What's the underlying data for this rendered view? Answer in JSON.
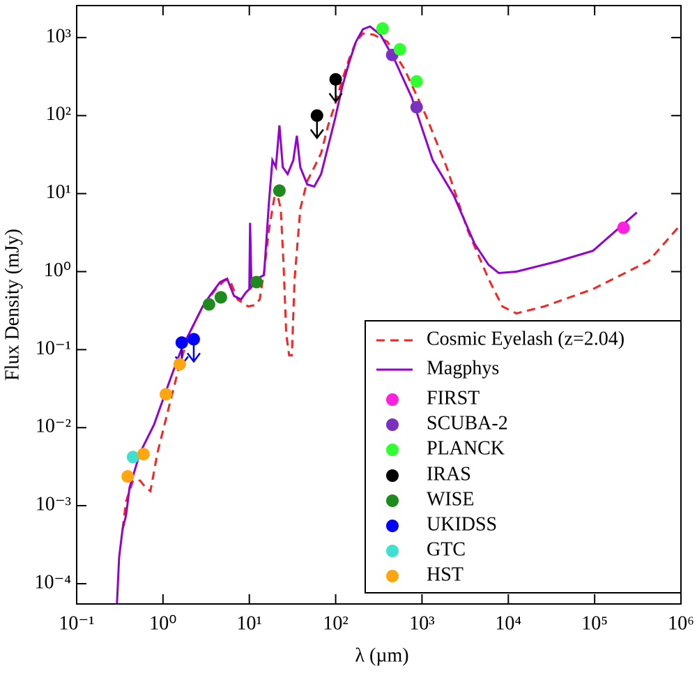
{
  "chart_data": {
    "type": "line",
    "xlabel": "λ (µm)",
    "ylabel": "Flux Density (mJy)",
    "xscale": "log",
    "yscale": "log",
    "legend": "lower right",
    "xlim": [
      0.1,
      1000000
    ],
    "ylim": [
      5.5e-05,
      2570
    ],
    "xticks": [
      {
        "value": 0.1,
        "label": "10⁻¹"
      },
      {
        "value": 1,
        "label": "10⁰"
      },
      {
        "value": 10,
        "label": "10¹"
      },
      {
        "value": 100,
        "label": "10²"
      },
      {
        "value": 1000,
        "label": "10³"
      },
      {
        "value": 10000,
        "label": "10⁴"
      },
      {
        "value": 100000,
        "label": "10⁵"
      },
      {
        "value": 1000000,
        "label": "10⁶"
      }
    ],
    "yticks": [
      {
        "value": 0.0001,
        "label": "10⁻⁴"
      },
      {
        "value": 0.001,
        "label": "10⁻³"
      },
      {
        "value": 0.01,
        "label": "10⁻²"
      },
      {
        "value": 0.1,
        "label": "10⁻¹"
      },
      {
        "value": 1,
        "label": "10⁰"
      },
      {
        "value": 10,
        "label": "10¹"
      },
      {
        "value": 100,
        "label": "10²"
      },
      {
        "value": 1000,
        "label": "10³"
      }
    ],
    "series": [
      {
        "name": "Cosmic Eyelash (z=2.04)",
        "color": "#ff2020",
        "style": "dashed",
        "x": [
          0.34,
          0.373,
          0.449,
          0.542,
          0.628,
          0.715,
          0.862,
          1.14,
          1.51,
          1.99,
          2.88,
          4.09,
          5.23,
          6.07,
          7.31,
          9.66,
          11.6,
          13.2,
          14.8,
          16.9,
          20.3,
          23.1,
          24.9,
          26.8,
          28.9,
          31.1,
          33.5,
          38.9,
          46.9,
          56.5,
          67.9,
          81.8,
          98.6,
          119,
          143,
          172,
          207,
          274,
          397,
          631,
          1100,
          1930,
          3370,
          5880,
          8530,
          12400,
          26000,
          95500,
          422000,
          1000000
        ],
        "values": [
          0.000497,
          0.00113,
          0.0021,
          0.0021,
          0.00171,
          0.00154,
          0.00477,
          0.0164,
          0.0562,
          0.157,
          0.358,
          0.598,
          0.781,
          0.735,
          0.44,
          0.358,
          0.373,
          0.44,
          1.0,
          3.43,
          11.8,
          6.36,
          1.23,
          0.157,
          0.0848,
          0.0848,
          0.814,
          6.36,
          14.5,
          21.8,
          33.0,
          75.0,
          139,
          285,
          529,
          884,
          1130,
          1090,
          884,
          388,
          102,
          21.8,
          3.43,
          0.814,
          0.358,
          0.291,
          0.358,
          0.598,
          1.36,
          4.05
        ]
      },
      {
        "name": "Magphys",
        "color": "#9400d3",
        "style": "solid",
        "x": [
          0.293,
          0.31,
          0.34,
          0.373,
          0.41,
          0.542,
          0.786,
          1.25,
          1.65,
          2.18,
          2.88,
          3.47,
          4.59,
          5.53,
          6.65,
          8.02,
          9.12,
          10.0,
          10.2,
          10.6,
          12.3,
          14.8,
          16.9,
          18.5,
          20.3,
          22.3,
          24.4,
          27.8,
          32.3,
          35.5,
          38.9,
          46.9,
          56.5,
          67.9,
          81.8,
          98.6,
          119,
          143,
          172,
          207,
          250,
          330,
          478,
          761,
          1330,
          2320,
          4060,
          5880,
          7760,
          12400,
          37700,
          95500,
          308000
        ],
        "values": [
          5.62e-05,
          0.000218,
          0.000497,
          0.00075,
          0.00171,
          0.00477,
          0.0109,
          0.0458,
          0.104,
          0.193,
          0.358,
          0.487,
          0.735,
          0.814,
          0.487,
          0.44,
          0.54,
          0.598,
          4.22,
          0.636,
          0.814,
          0.902,
          7.81,
          26.8,
          21.8,
          75.0,
          21.8,
          17.8,
          26.8,
          55.1,
          21.8,
          13.1,
          12.3,
          17.8,
          40.5,
          92.1,
          232,
          477,
          884,
          1280,
          1390,
          1090,
          529,
          171,
          26.8,
          9.6,
          2.28,
          1.23,
          0.96,
          1.0,
          1.36,
          1.85,
          5.74
        ]
      },
      {
        "name": "FIRST",
        "color": "#ff20e0",
        "style": "marker",
        "x": [
          216000
        ],
        "values": [
          3.65
        ]
      },
      {
        "name": "SCUBA-2",
        "color": "#7b30c0",
        "style": "marker",
        "x": [
          452,
          867
        ],
        "values": [
          598,
          128
        ]
      },
      {
        "name": "PLANCK",
        "color": "#30ff30",
        "style": "marker",
        "x": [
          349,
          555,
          867
        ],
        "values": [
          1306,
          705,
          274
        ]
      },
      {
        "name": "IRAS",
        "color": "#000000",
        "style": "upper-limit",
        "x": [
          60.8,
          100
        ],
        "values": [
          100,
          291
        ]
      },
      {
        "name": "WISE",
        "color": "#1e8a1e",
        "style": "marker",
        "x": [
          3.41,
          4.68,
          12.1,
          22.3
        ],
        "values": [
          0.38,
          0.468,
          0.734,
          10.9
        ]
      },
      {
        "name": "UKIDSS",
        "color": "#0000ff",
        "style": "upper-limit",
        "x": [
          1.65,
          2.27
        ],
        "values": [
          0.123,
          0.136
        ]
      },
      {
        "name": "GTC",
        "color": "#40e0d0",
        "style": "marker",
        "x": [
          0.45
        ],
        "values": [
          0.0042
        ]
      },
      {
        "name": "HST",
        "color": "#ffa510",
        "style": "marker",
        "x": [
          0.39,
          0.594,
          1.08,
          1.56
        ],
        "values": [
          0.00237,
          0.00458,
          0.0268,
          0.065
        ]
      }
    ]
  }
}
